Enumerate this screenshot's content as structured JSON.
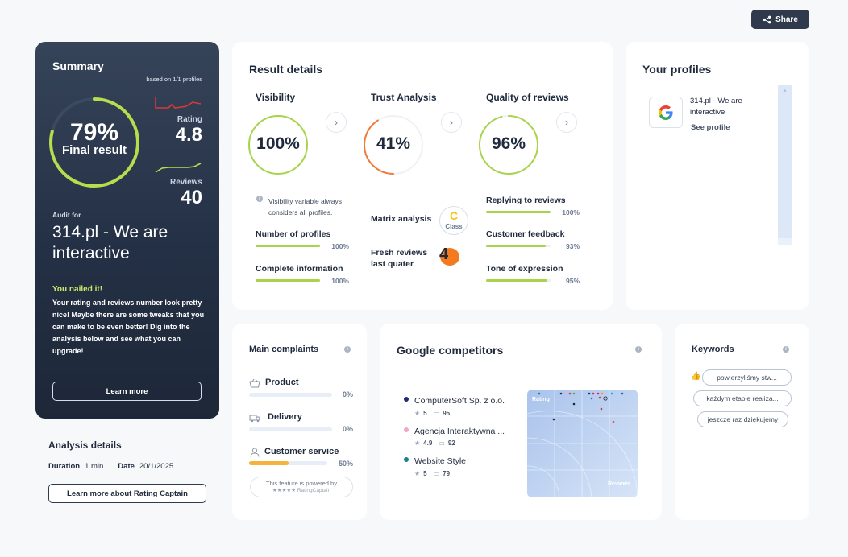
{
  "share": {
    "label": "Share"
  },
  "summary": {
    "title": "Summary",
    "based_on": "based on 1/1 profiles",
    "final_pct": "79%",
    "final_label": "Final result",
    "final_value": 0.79,
    "rating_label": "Rating",
    "rating_value": "4.8",
    "reviews_label": "Reviews",
    "reviews_value": "40",
    "audit_for": "Audit for",
    "company": "314.pl - We are interactive",
    "nailed_title": "You nailed it!",
    "nailed_text": "Your rating and reviews number look pretty nice! Maybe there are some tweaks that you can make to be even better! Dig into the analysis below and see what you can upgrade!",
    "learn_more": "Learn more"
  },
  "analysis": {
    "title": "Analysis details",
    "duration_label": "Duration",
    "duration_value": "1 min",
    "date_label": "Date",
    "date_value": "20/1/2025",
    "button": "Learn more about Rating Captain"
  },
  "result_details": {
    "title": "Result details",
    "visibility": {
      "title": "Visibility",
      "pct": "100%",
      "value": 1.0,
      "note": "Visibility variable always considers all profiles.",
      "metrics": [
        {
          "label": "Number of profiles",
          "pct": "100%",
          "value": 1.0
        },
        {
          "label": "Complete information",
          "pct": "100%",
          "value": 1.0
        }
      ]
    },
    "trust": {
      "title": "Trust Analysis",
      "pct": "41%",
      "value": 0.41,
      "matrix_label": "Matrix analysis",
      "class_letter": "C",
      "class_label": "Class",
      "fresh_label": "Fresh reviews last quater",
      "fresh_value": "4"
    },
    "quality": {
      "title": "Quality of reviews",
      "pct": "96%",
      "value": 0.96,
      "metrics": [
        {
          "label": "Replying to reviews",
          "pct": "100%",
          "value": 1.0
        },
        {
          "label": "Customer feedback",
          "pct": "93%",
          "value": 0.93
        },
        {
          "label": "Tone of expression",
          "pct": "95%",
          "value": 0.95
        }
      ]
    }
  },
  "profiles": {
    "title": "Your profiles",
    "items": [
      {
        "name": "314.pl - We are interactive",
        "link": "See profile"
      }
    ]
  },
  "complaints": {
    "title": "Main complaints",
    "items": [
      {
        "label": "Product",
        "pct": "0%",
        "value": 0
      },
      {
        "label": "Delivery",
        "pct": "0%",
        "value": 0
      },
      {
        "label": "Customer service",
        "pct": "50%",
        "value": 0.5
      }
    ],
    "powered_line1": "This feature is powered by",
    "powered_line2": "★★★★★ RatingCaptain"
  },
  "competitors": {
    "title": "Google competitors",
    "items": [
      {
        "name": "ComputerSoft Sp. z o.o.",
        "rating": "5",
        "reviews": "95",
        "color": "#1e2a78"
      },
      {
        "name": "Agencja Interaktywna ...",
        "rating": "4.9",
        "reviews": "92",
        "color": "#f4a6c8"
      },
      {
        "name": "Website Style",
        "rating": "5",
        "reviews": "79",
        "color": "#1a7f8e"
      }
    ],
    "plot_label_y": "Rating",
    "plot_label_x": "Reviews"
  },
  "keywords": {
    "title": "Keywords",
    "items": [
      "powierzyliśmy stw...",
      "każdym etapie realiza...",
      "jeszcze raz dziękujemy"
    ]
  }
}
